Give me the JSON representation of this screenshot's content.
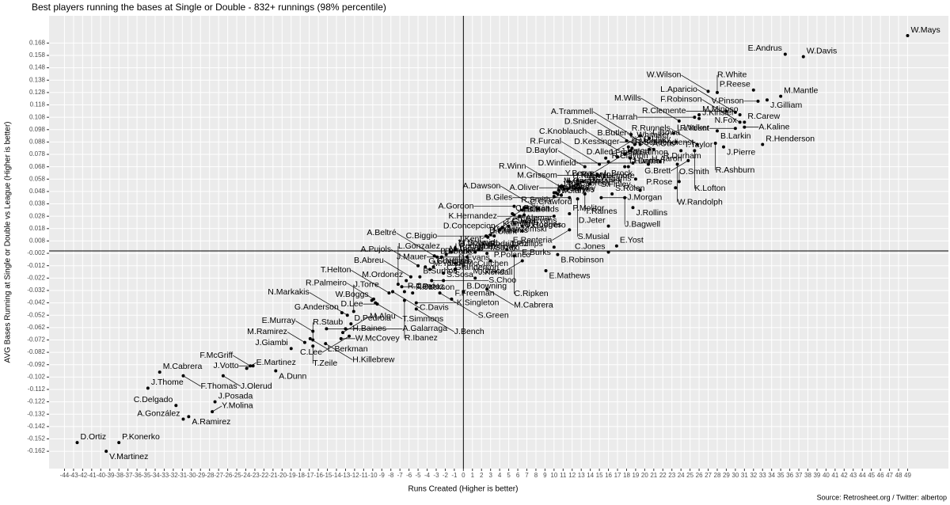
{
  "chart_data": {
    "type": "scatter",
    "title": "Best players running the bases at Single or Double - 832+ runnings (98% percentile)",
    "xlabel": "Runs Created (Higher is better)",
    "ylabel": "AVG Bases Running at Single or Double vs League (Higher is better)",
    "caption": "Source: Retrosheet.org / Twitter: albertop",
    "reference_lines": {
      "x": 0,
      "y": 0
    },
    "grid": true,
    "color": "#000000",
    "xlim": [
      -45.7,
      53.5
    ],
    "ylim": [
      -0.176,
      0.19
    ],
    "xticks": [
      -44,
      -43,
      -42,
      -41,
      -40,
      -39,
      -38,
      -37,
      -36,
      -35,
      -34,
      -33,
      -32,
      -31,
      -30,
      -29,
      -28,
      -27,
      -26,
      -25,
      -24,
      -23,
      -22,
      -21,
      -20,
      -19,
      -18,
      -17,
      -16,
      -15,
      -14,
      -13,
      -12,
      -11,
      -10,
      -9,
      -8,
      -7,
      -6,
      -5,
      -4,
      -3,
      -2,
      -1,
      0,
      1,
      2,
      3,
      4,
      5,
      6,
      7,
      8,
      9,
      10,
      11,
      12,
      13,
      14,
      15,
      16,
      17,
      18,
      19,
      20,
      21,
      22,
      23,
      24,
      25,
      26,
      27,
      28,
      29,
      30,
      31,
      32,
      33,
      34,
      35,
      36,
      37,
      38,
      39,
      40,
      41,
      42,
      43,
      44,
      45,
      46,
      47,
      48,
      49
    ],
    "yticks": [
      0.168,
      0.158,
      0.148,
      0.138,
      0.128,
      0.118,
      0.108,
      0.098,
      0.088,
      0.078,
      0.068,
      0.058,
      0.048,
      0.038,
      0.028,
      0.018,
      0.008,
      -0.002,
      -0.012,
      -0.022,
      -0.032,
      -0.042,
      -0.052,
      -0.062,
      -0.072,
      -0.082,
      -0.092,
      -0.102,
      -0.112,
      -0.122,
      -0.132,
      -0.142,
      -0.152,
      -0.162
    ],
    "labels": [
      "W.Mays",
      "E.Andrus",
      "W.Davis",
      "P.Reese",
      "J.Gilliam",
      "W.Wilson",
      "R.White",
      "M.Mantle",
      "V.Pinson",
      "M.Minoso",
      "R.Clemente",
      "T.Harrah",
      "N.Fox",
      "L.Aparicio",
      "J.Kinsler",
      "M.Wills",
      "A.Trammell",
      "D.Allen",
      "F.Robinson",
      "R.Carew",
      "L.Whitaker",
      "C.Utley",
      "L.Bowa",
      "L.Walker",
      "B.Larkin",
      "R.Yount",
      "A.Kaline",
      "B.Murcer",
      "R.Schoendienst",
      "D.Snider",
      "D.Kessinger",
      "R.Runnels",
      "R.Ashburn",
      "R.Henderson",
      "Y.Berra",
      "C.Knoblauch",
      "J.Franco",
      "J.Upton",
      "T.Salmon",
      "A.Otis",
      "B.Butler",
      "T.Taylor",
      "K.Lofton",
      "J.Pierre",
      "H.Kuenn",
      "R.Smith",
      "M.McLemore",
      "D.Baylor",
      "R.Clayton",
      "R.Furcal",
      "T.Hunter",
      "D.Winfield",
      "R.Durham",
      "G.Brett",
      "M.Grudzielanek",
      "L.Castillo",
      "O.Cabrera",
      "R.Santo",
      "M.Grissom",
      "J.Damon",
      "H.Aaron",
      "W.Randolph",
      "K.Griffey",
      "A.Jones",
      "S.Garvey",
      "J.Bell",
      "R.Winn",
      "A.Oliver",
      "B.Williams",
      "L.Brock",
      "O.Smith",
      "A.Gordon",
      "G.Hodges",
      "D.Concepcion",
      "C.Crawford",
      "W.Clark",
      "J.Reyes",
      "T.Raines",
      "S.Rolen",
      "S.Finley",
      "P.Rose",
      "C.Beltrán",
      "J.Edmonds",
      "J.Kent",
      "B.Bell",
      "A.Dawson",
      "B.Giles",
      "S.Musial",
      "J.Morgan",
      "J.Bagwell",
      "K.Griffey",
      "T.Gwynn",
      "C.Fisk",
      "R.Alomar",
      "D.Evans",
      "K.Hernandez",
      "P.Molitor",
      "J.Rollins",
      "B.Williams",
      "C.Yastrzemski",
      "J.Clark",
      "C.Biggio",
      "V.Guerrero",
      "E.Renteria",
      "D.Jeter",
      "O.Vizquel",
      "I.Rodriguez",
      "M.Schmidt",
      "M.Holliday",
      "A.Rodriguez",
      "T.Phillips",
      "E.Burks",
      "E.Yost",
      "A.Beltré",
      "B.Bonds",
      "D.Parker",
      "M.Tejada",
      "J.Mauer",
      "I.Suzuki",
      "C.Ripken",
      "B.Robinson",
      "C.Jones",
      "A.Pujols",
      "G.Sheffield",
      "M.Young",
      "G.Nettles",
      "D.Evans",
      "P.Polanco",
      "M.Grace",
      "E.Mathews",
      "L.Gonzalez",
      "T.Perez",
      "M.Ordonez",
      "B.Abreu",
      "B.Surhoff",
      "C.Granderson",
      "A.McCutchen",
      "J.Kendall",
      "S.Sosa",
      "T.Helton",
      "C.Davis",
      "R.Canó",
      "S.Choo",
      "W.Boggs",
      "R.Palmeiro",
      "T.Simmons",
      "D.Lee",
      "R.Jackson",
      "S.Green",
      "B.Downing",
      "M.Cabrera",
      "G.Anderson",
      "N.Markakis",
      "J.Torre",
      "R.Ibanez",
      "K.Singleton",
      "F.Freeman",
      "E.Murray",
      "H.Baines",
      "D.Pedroia",
      "J.Bench",
      "M.Ramirez",
      "L.Berkman",
      "R.Staub",
      "M.Alou",
      "A.Galarraga",
      "J.Giambi",
      "T.Zeile",
      "C.Lee",
      "H.Killebrew",
      "W.McCovey",
      "J.Votto",
      "E.Martinez",
      "A.Dunn",
      "F.McGriff",
      "M.Cabrera",
      "J.Olerud",
      "F.Thomas",
      "J.Thome",
      "J.Posada",
      "C.Delgado",
      "A.Ramirez",
      "Y.Molina",
      "A.González",
      "D.Ortiz",
      "P.Konerko",
      "V.Martinez"
    ],
    "x": [
      49,
      35.5,
      37.5,
      32,
      33.5,
      27,
      28,
      35,
      32.5,
      26,
      29,
      25.5,
      30.5,
      30,
      26,
      23.8,
      18.5,
      19.5,
      30.5,
      31,
      18,
      19.5,
      20.5,
      23.2,
      28,
      30,
      31,
      18.2,
      18.6,
      18.9,
      23.5,
      25.8,
      27.8,
      33,
      18.4,
      17.8,
      15.7,
      17,
      18.4,
      20.5,
      21,
      24,
      25.5,
      28.7,
      11.7,
      12.6,
      13.2,
      13.4,
      16,
      15,
      17.8,
      18.7,
      21.7,
      24.8,
      10.7,
      11,
      11.5,
      12.6,
      14.8,
      18.2,
      20.4,
      23.6,
      10,
      10.2,
      10.4,
      10.5,
      11.1,
      12.8,
      13.9,
      19,
      23.8,
      5.6,
      6.7,
      6.5,
      7,
      10,
      10.8,
      13.4,
      16.4,
      19.5,
      23.4,
      5.4,
      5.6,
      6.2,
      6.7,
      8.3,
      11.7,
      12.6,
      15.2,
      17.8,
      4,
      4.3,
      5,
      5.6,
      6.5,
      10,
      11.7,
      18.7,
      2.5,
      3,
      2.7,
      3.4,
      6.5,
      11.7,
      16,
      -0.9,
      -1.3,
      -0.9,
      1.3,
      1.7,
      4.8,
      10,
      16.9,
      -3.2,
      -2.9,
      -2.4,
      -1.9,
      0.4,
      2.6,
      5.6,
      10.4,
      16,
      -5,
      -4.2,
      -3.7,
      -3.3,
      -0.9,
      3,
      6.5,
      9.1,
      -7.2,
      -6.8,
      -6.3,
      -5.8,
      -4.8,
      -2.2,
      -0.9,
      1.3,
      -2.2,
      -8.2,
      -7.8,
      -6.5,
      -3.5,
      -10.1,
      -9.9,
      -9.7,
      -9.5,
      -5.6,
      -2.6,
      0,
      2.6,
      -13.4,
      -12.8,
      -12.1,
      -6.5,
      -5.2,
      -1.3,
      -16.6,
      -15.1,
      -12.4,
      -5.2,
      -17.5,
      -16.9,
      -16.6,
      -13.3,
      -13,
      -19,
      -16.6,
      -12.6,
      -15.2,
      -13.5,
      -23.2,
      -23.9,
      -20.7,
      -23.5,
      -33.5,
      -26.5,
      -30.9,
      -34.8,
      -27.4,
      -31.7,
      -30.3,
      -27.7,
      -30.9,
      -42.6,
      -38,
      -39.4
    ],
    "values": [
      0.174,
      0.159,
      0.157,
      0.13,
      0.122,
      0.129,
      0.128,
      0.125,
      0.121,
      0.11,
      0.113,
      0.108,
      0.11,
      0.112,
      0.107,
      0.105,
      0.094,
      0.093,
      0.104,
      0.104,
      0.089,
      0.086,
      0.091,
      0.095,
      0.097,
      0.099,
      0.1,
      0.084,
      0.083,
      0.086,
      0.088,
      0.086,
      0.087,
      0.086,
      0.081,
      0.078,
      0.075,
      0.076,
      0.075,
      0.082,
      0.082,
      0.081,
      0.081,
      0.084,
      0.056,
      0.054,
      0.056,
      0.068,
      0.072,
      0.07,
      0.068,
      0.071,
      0.072,
      0.073,
      0.052,
      0.052,
      0.05,
      0.057,
      0.061,
      0.068,
      0.07,
      0.07,
      0.047,
      0.047,
      0.046,
      0.049,
      0.05,
      0.051,
      0.054,
      0.058,
      0.056,
      0.036,
      0.035,
      0.033,
      0.035,
      0.044,
      0.045,
      0.046,
      0.046,
      0.049,
      0.051,
      0.03,
      0.029,
      0.028,
      0.029,
      0.034,
      0.043,
      0.042,
      0.043,
      0.043,
      0.017,
      0.019,
      0.02,
      0.022,
      0.02,
      0.028,
      0.03,
      0.035,
      0.012,
      0.013,
      0.011,
      0.012,
      0.016,
      0.017,
      0.02,
      0.001,
      -0.001,
      0.002,
      -0.001,
      0.001,
      0.001,
      0.003,
      0.004,
      -0.004,
      -0.005,
      -0.005,
      -0.003,
      -0.005,
      -0.002,
      -0.004,
      -0.003,
      -0.001,
      -0.012,
      -0.013,
      -0.015,
      -0.013,
      -0.01,
      -0.008,
      -0.008,
      -0.016,
      -0.027,
      -0.029,
      -0.024,
      -0.021,
      -0.021,
      -0.018,
      -0.015,
      -0.022,
      -0.024,
      -0.034,
      -0.033,
      -0.033,
      -0.024,
      -0.04,
      -0.039,
      -0.042,
      -0.043,
      -0.034,
      -0.034,
      -0.033,
      -0.031,
      -0.05,
      -0.052,
      -0.049,
      -0.04,
      -0.042,
      -0.039,
      -0.065,
      -0.063,
      -0.059,
      -0.047,
      -0.074,
      -0.071,
      -0.072,
      -0.066,
      -0.063,
      -0.079,
      -0.077,
      -0.069,
      -0.075,
      -0.071,
      -0.093,
      -0.095,
      -0.097,
      -0.093,
      -0.098,
      -0.101,
      -0.101,
      -0.111,
      -0.122,
      -0.125,
      -0.134,
      -0.13,
      -0.136,
      -0.155,
      -0.155,
      -0.162
    ]
  }
}
